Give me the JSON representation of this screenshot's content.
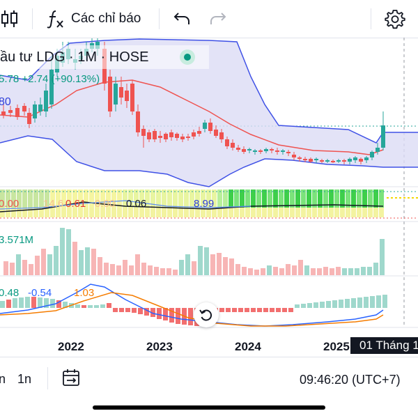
{
  "toolbar": {
    "indicators_label": "Các chỉ báo"
  },
  "chart": {
    "symbol_title": "ầu tư LDG · 1M · HOSE",
    "price_legend": "5.78  +2.74 (+90.13%)",
    "left_value": "80",
    "indicator_values": {
      "v1": "0.00",
      "v2": "14.6",
      "v3": "0.61",
      "v4": "0.00",
      "v5": "0.06",
      "v6": "8.99"
    },
    "volume_value": "3.571M",
    "macd_values": {
      "m1": "0.48",
      "m2": "-0.54",
      "m3": "1.03"
    },
    "year_labels": [
      "2022",
      "2023",
      "2024",
      "2025"
    ],
    "date_tooltip": "01 Tháng 1"
  },
  "bottom": {
    "left_partial": "n",
    "interval_label": "1n",
    "clock": "09:46:20 (UTC+7)"
  },
  "colors": {
    "up": "#26a69a",
    "down": "#ef5350",
    "band": "#3f51e6",
    "band_fill": "#dcdcf5",
    "ma": "#ef5350"
  },
  "icons": {
    "candles": "candles-icon",
    "fx": "fx-icon",
    "undo": "undo-icon",
    "redo": "redo-icon",
    "settings": "gear-icon",
    "reset": "reset-icon",
    "date_range": "calendar-range-icon"
  }
}
